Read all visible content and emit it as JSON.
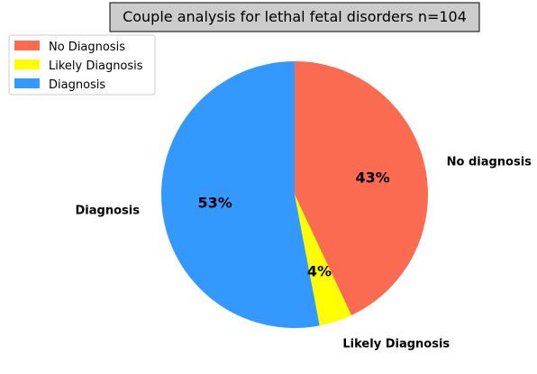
{
  "chart_data": {
    "type": "pie",
    "title": "Couple analysis for lethal fetal disorders n=104",
    "start_angle_deg": 90,
    "direction": "clockwise",
    "legend_position": "top-left",
    "slices": [
      {
        "legend_label": "No Diagnosis",
        "outer_label": "No diagnosis",
        "value": 43,
        "pct_label": "43%",
        "color": "#FA6B52"
      },
      {
        "legend_label": "Likely Diagnosis",
        "outer_label": "Likely Diagnosis",
        "value": 4,
        "pct_label": "4%",
        "color": "#FFFF00"
      },
      {
        "legend_label": "Diagnosis",
        "outer_label": "Diagnosis",
        "value": 53,
        "pct_label": "53%",
        "color": "#3399FF"
      }
    ]
  }
}
